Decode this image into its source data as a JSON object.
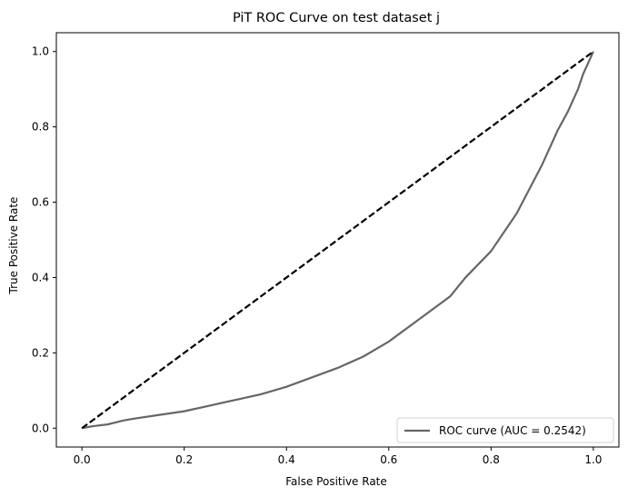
{
  "chart_data": {
    "type": "line",
    "title": "PiT ROC Curve on test dataset j",
    "xlabel": "False Positive Rate",
    "ylabel": "True Positive Rate",
    "xlim": [
      -0.05,
      1.05
    ],
    "ylim": [
      -0.05,
      1.05
    ],
    "xticks": [
      "0.0",
      "0.2",
      "0.4",
      "0.6",
      "0.8",
      "1.0"
    ],
    "yticks": [
      "0.0",
      "0.2",
      "0.4",
      "0.6",
      "0.8",
      "1.0"
    ],
    "grid": false,
    "legend": {
      "placement": "lower-right"
    },
    "series": [
      {
        "name": "ROC curve (AUC = 0.2542)",
        "color": "#666666",
        "style": "solid",
        "x": [
          0.0,
          0.02,
          0.05,
          0.08,
          0.1,
          0.15,
          0.2,
          0.25,
          0.3,
          0.35,
          0.4,
          0.45,
          0.5,
          0.55,
          0.6,
          0.65,
          0.7,
          0.72,
          0.75,
          0.8,
          0.85,
          0.9,
          0.93,
          0.95,
          0.97,
          0.98,
          0.99,
          1.0
        ],
        "y": [
          0.0,
          0.005,
          0.01,
          0.02,
          0.025,
          0.035,
          0.045,
          0.06,
          0.075,
          0.09,
          0.11,
          0.135,
          0.16,
          0.19,
          0.23,
          0.28,
          0.33,
          0.35,
          0.4,
          0.47,
          0.57,
          0.7,
          0.79,
          0.84,
          0.9,
          0.94,
          0.97,
          1.0
        ]
      },
      {
        "name": "",
        "color": "#000000",
        "style": "dashed",
        "x": [
          0.0,
          1.0
        ],
        "y": [
          0.0,
          1.0
        ]
      }
    ]
  }
}
